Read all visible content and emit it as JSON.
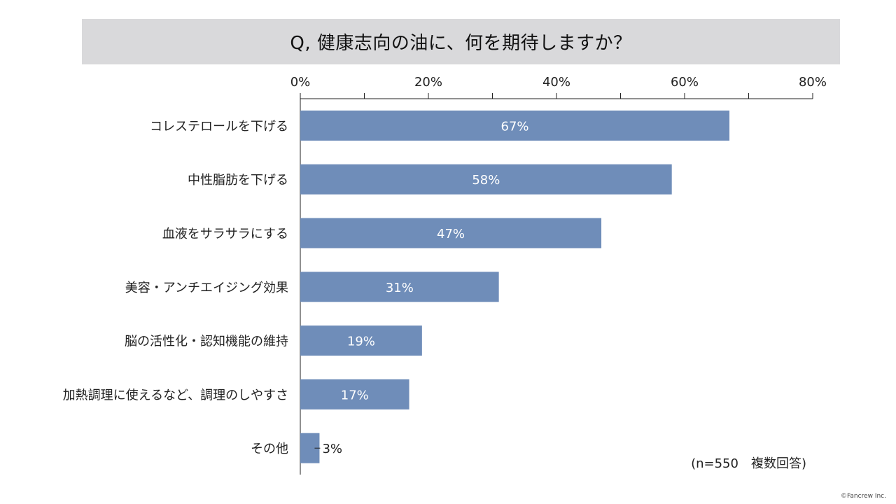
{
  "title": "Q, 健康志向の油に、何を期待しますか？",
  "note": "(n=550　複数回答)",
  "credit": "©Fancrew Inc.",
  "colors": {
    "bar": "#6f8db9",
    "title_band": "#d9d9db",
    "axis": "#222222",
    "label_inside": "#ffffff",
    "label_outside": "#222222"
  },
  "chart_data": {
    "type": "bar",
    "orientation": "horizontal",
    "title": "Q, 健康志向の油に、何を期待しますか？",
    "categories": [
      "コレステロールを下げる",
      "中性脂肪を下げる",
      "血液をサラサラにする",
      "美容・アンチエイジング効果",
      "脳の活性化・認知機能の維持",
      "加熱調理に使えるなど、調理のしやすさ",
      "その他"
    ],
    "values": [
      67,
      58,
      47,
      31,
      19,
      17,
      3
    ],
    "data_labels": [
      "67%",
      "58%",
      "47%",
      "31%",
      "19%",
      "17%",
      "3%"
    ],
    "xlim": [
      0,
      80
    ],
    "x_ticks": [
      0,
      20,
      40,
      60,
      80
    ],
    "x_tick_labels": [
      "0%",
      "20%",
      "40%",
      "60%",
      "80%"
    ],
    "x_axis_position": "top",
    "grid": false,
    "legend": "none"
  }
}
